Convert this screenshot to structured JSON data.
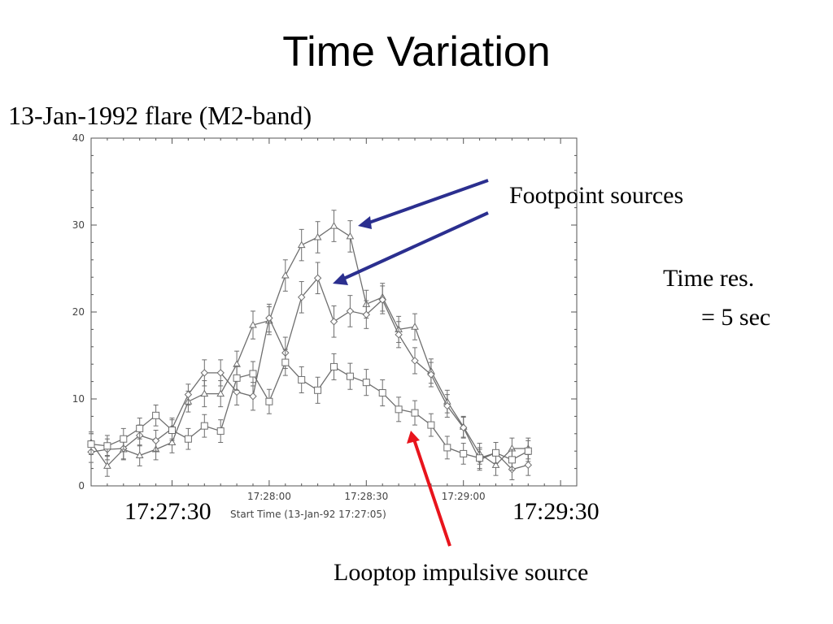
{
  "slide": {
    "title": "Time Variation",
    "subtitle": "13-Jan-1992 flare (M2-band)"
  },
  "annotations": {
    "footpoint": "Footpoint sources",
    "time_res_line1": "Time res.",
    "time_res_line2": "= 5 sec",
    "looptop": "Looptop impulsive source",
    "x_left_time": "17:27:30",
    "x_right_time": "17:29:30"
  },
  "colors": {
    "footpoint_arrow": "#2b2f8f",
    "looptop_arrow": "#e8141c",
    "series_line": "#6e6e6e"
  },
  "chart_data": {
    "type": "line",
    "xlabel": "Start Time (13-Jan-92 17:27:05)",
    "ylabel": "",
    "x_unit": "seconds since 17:27:05",
    "xlim": [
      0,
      150
    ],
    "ylim": [
      0,
      40
    ],
    "yticks": [
      0,
      10,
      20,
      30,
      40
    ],
    "xticks": [
      {
        "value": 55,
        "label": "17:28:00"
      },
      {
        "value": 85,
        "label": "17:28:30"
      },
      {
        "value": 115,
        "label": "17:29:00"
      }
    ],
    "grid": false,
    "x": [
      0,
      5,
      10,
      15,
      20,
      25,
      30,
      35,
      40,
      45,
      50,
      55,
      60,
      65,
      70,
      75,
      80,
      85,
      90,
      95,
      100,
      105,
      110,
      115,
      120,
      125,
      130,
      135
    ],
    "series": [
      {
        "marker": "triangle",
        "values": [
          5.0,
          2.3,
          4.2,
          3.5,
          4.2,
          5.0,
          9.7,
          10.6,
          10.6,
          14.0,
          18.5,
          19.0,
          24.2,
          27.7,
          28.6,
          29.9,
          28.7,
          20.9,
          21.7,
          18.0,
          18.3,
          13.2,
          9.7,
          6.8,
          3.7,
          2.4,
          4.3,
          4.3
        ]
      },
      {
        "marker": "diamond",
        "values": [
          3.9,
          4.2,
          4.3,
          5.8,
          5.2,
          6.6,
          10.5,
          13.0,
          13.0,
          10.8,
          10.3,
          19.3,
          15.3,
          21.7,
          23.9,
          18.9,
          20.1,
          19.7,
          21.4,
          17.4,
          14.4,
          12.8,
          9.2,
          6.7,
          3.0,
          3.8,
          1.9,
          2.4
        ]
      },
      {
        "marker": "square",
        "values": [
          4.8,
          4.6,
          5.4,
          6.6,
          8.1,
          6.4,
          5.4,
          6.9,
          6.3,
          12.4,
          12.9,
          9.7,
          14.2,
          12.2,
          11.0,
          13.7,
          12.6,
          11.9,
          10.7,
          8.8,
          8.4,
          7.0,
          4.4,
          3.7,
          3.2,
          3.8,
          3.0,
          4.0
        ]
      }
    ],
    "error_bars": {
      "series_1": [
        1.2,
        1.2,
        1.2,
        1.2,
        1.2,
        1.2,
        1.2,
        1.5,
        1.5,
        1.5,
        1.6,
        1.6,
        1.8,
        1.8,
        1.8,
        1.8,
        1.8,
        1.6,
        1.6,
        1.5,
        1.5,
        1.4,
        1.3,
        1.2,
        1.2,
        1.2,
        1.2,
        1.2
      ],
      "series_2": [
        1.2,
        1.2,
        1.2,
        1.2,
        1.2,
        1.2,
        1.2,
        1.5,
        1.5,
        1.5,
        1.6,
        1.6,
        1.8,
        1.8,
        1.8,
        1.8,
        1.8,
        1.6,
        1.6,
        1.5,
        1.5,
        1.4,
        1.3,
        1.2,
        1.2,
        1.2,
        1.2,
        1.2
      ],
      "series_3": [
        1.2,
        1.2,
        1.2,
        1.2,
        1.2,
        1.2,
        1.2,
        1.3,
        1.3,
        1.4,
        1.4,
        1.4,
        1.5,
        1.5,
        1.5,
        1.5,
        1.5,
        1.5,
        1.5,
        1.4,
        1.4,
        1.3,
        1.3,
        1.2,
        1.2,
        1.2,
        1.2,
        1.2
      ]
    }
  }
}
